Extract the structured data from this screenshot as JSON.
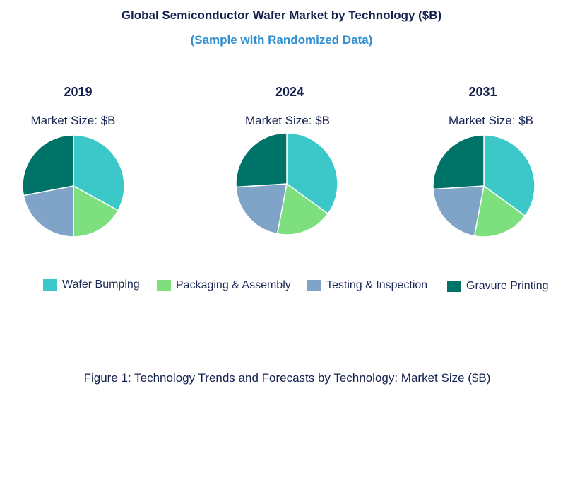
{
  "header": {
    "title": "Global Semiconductor Wafer Market by Technology ($B)",
    "subtitle": "(Sample with Randomized Data)"
  },
  "caption": "Figure 1: Technology Trends and Forecasts by Technology: Market Size ($B)",
  "colors": {
    "wafer_bumping": "#3cc8c8",
    "packaging_assembly": "#7ddf7d",
    "testing_inspection": "#7fa4c8",
    "gravure_printing": "#007368"
  },
  "chart_data": [
    {
      "type": "pie",
      "title": "2019",
      "subtitle": "Market Size: $B",
      "labels": [
        "Wafer Bumping",
        "Packaging & Assembly",
        "Testing & Inspection",
        "Gravure Printing"
      ],
      "values": [
        33,
        17,
        22,
        28
      ]
    },
    {
      "type": "pie",
      "title": "2024",
      "subtitle": "Market Size: $B",
      "labels": [
        "Wafer Bumping",
        "Packaging & Assembly",
        "Testing & Inspection",
        "Gravure Printing"
      ],
      "values": [
        35,
        18,
        21,
        26
      ]
    },
    {
      "type": "pie",
      "title": "2031",
      "subtitle": "Market Size: $B",
      "labels": [
        "Wafer Bumping",
        "Packaging & Assembly",
        "Testing & Inspection",
        "Gravure Printing"
      ],
      "values": [
        35,
        18,
        21,
        26
      ]
    }
  ],
  "legend": [
    {
      "label": "Wafer Bumping",
      "color": "#3cc8c8"
    },
    {
      "label": "Packaging  & Assembly",
      "color": "#7ddf7d"
    },
    {
      "label": "Testing  & Inspection",
      "color": "#7fa4c8"
    },
    {
      "label": "Gravure  Printing",
      "color": "#007368"
    }
  ]
}
